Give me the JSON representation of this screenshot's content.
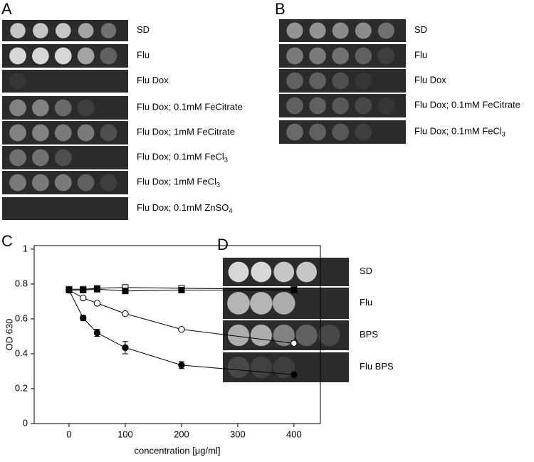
{
  "panels": {
    "A": {
      "letter": "A",
      "rows": [
        {
          "text": "SD"
        },
        {
          "text": "Flu"
        },
        {
          "text": "Flu Dox"
        },
        {
          "text": "Flu Dox; 0.1mM FeCitrate"
        },
        {
          "text": "Flu Dox; 1mM FeCitrate"
        },
        {
          "text": "Flu Dox; 0.1mM FeCl",
          "sub": "3"
        },
        {
          "text": "Flu Dox; 1mM FeCl",
          "sub": "3"
        },
        {
          "text": "Flu Dox; 0.1mM ZnSO",
          "sub": "4"
        }
      ]
    },
    "B": {
      "letter": "B",
      "rows": [
        {
          "text": "SD"
        },
        {
          "text": "Flu"
        },
        {
          "text": "Flu Dox"
        },
        {
          "text": "Flu Dox; 0.1mM FeCitrate"
        },
        {
          "text": "Flu Dox; 0.1mM FeCl",
          "sub": "3"
        }
      ]
    },
    "C": {
      "letter": "C"
    },
    "D": {
      "letter": "D",
      "rows": [
        {
          "text": "SD"
        },
        {
          "text": "Flu"
        },
        {
          "text": "BPS"
        },
        {
          "text": "Flu BPS"
        }
      ]
    }
  },
  "chart_data": {
    "type": "line",
    "x_label": "concentration [μg/ml]",
    "y_label": "OD 630",
    "x": [
      0,
      25,
      50,
      100,
      200,
      400
    ],
    "series": [
      {
        "color": "#000000",
        "marker": "square",
        "filled": false,
        "values": [
          0.77,
          0.77,
          0.775,
          0.78,
          0.775,
          0.77
        ]
      },
      {
        "color": "#000000",
        "marker": "square",
        "filled": true,
        "values": [
          0.765,
          0.765,
          0.77,
          0.76,
          0.765,
          0.765
        ]
      },
      {
        "color": "#000000",
        "marker": "circle",
        "filled": false,
        "values": [
          0.765,
          0.72,
          0.69,
          0.63,
          0.54,
          0.46
        ],
        "errors": [
          0.005,
          0.005,
          0.005,
          0.005,
          0.005,
          0.015
        ]
      },
      {
        "color": "#000000",
        "marker": "circle",
        "filled": true,
        "values": [
          0.765,
          0.605,
          0.52,
          0.435,
          0.335,
          0.28
        ],
        "errors": [
          0.005,
          0.015,
          0.02,
          0.035,
          0.02,
          0.01
        ]
      }
    ],
    "xlim": [
      -62,
      447
    ],
    "xticks": [
      0,
      100,
      200,
      300,
      400
    ],
    "ylim": [
      0,
      1.02
    ],
    "yticks": [
      0,
      0.2,
      0.4,
      0.6,
      0.8,
      1
    ]
  }
}
